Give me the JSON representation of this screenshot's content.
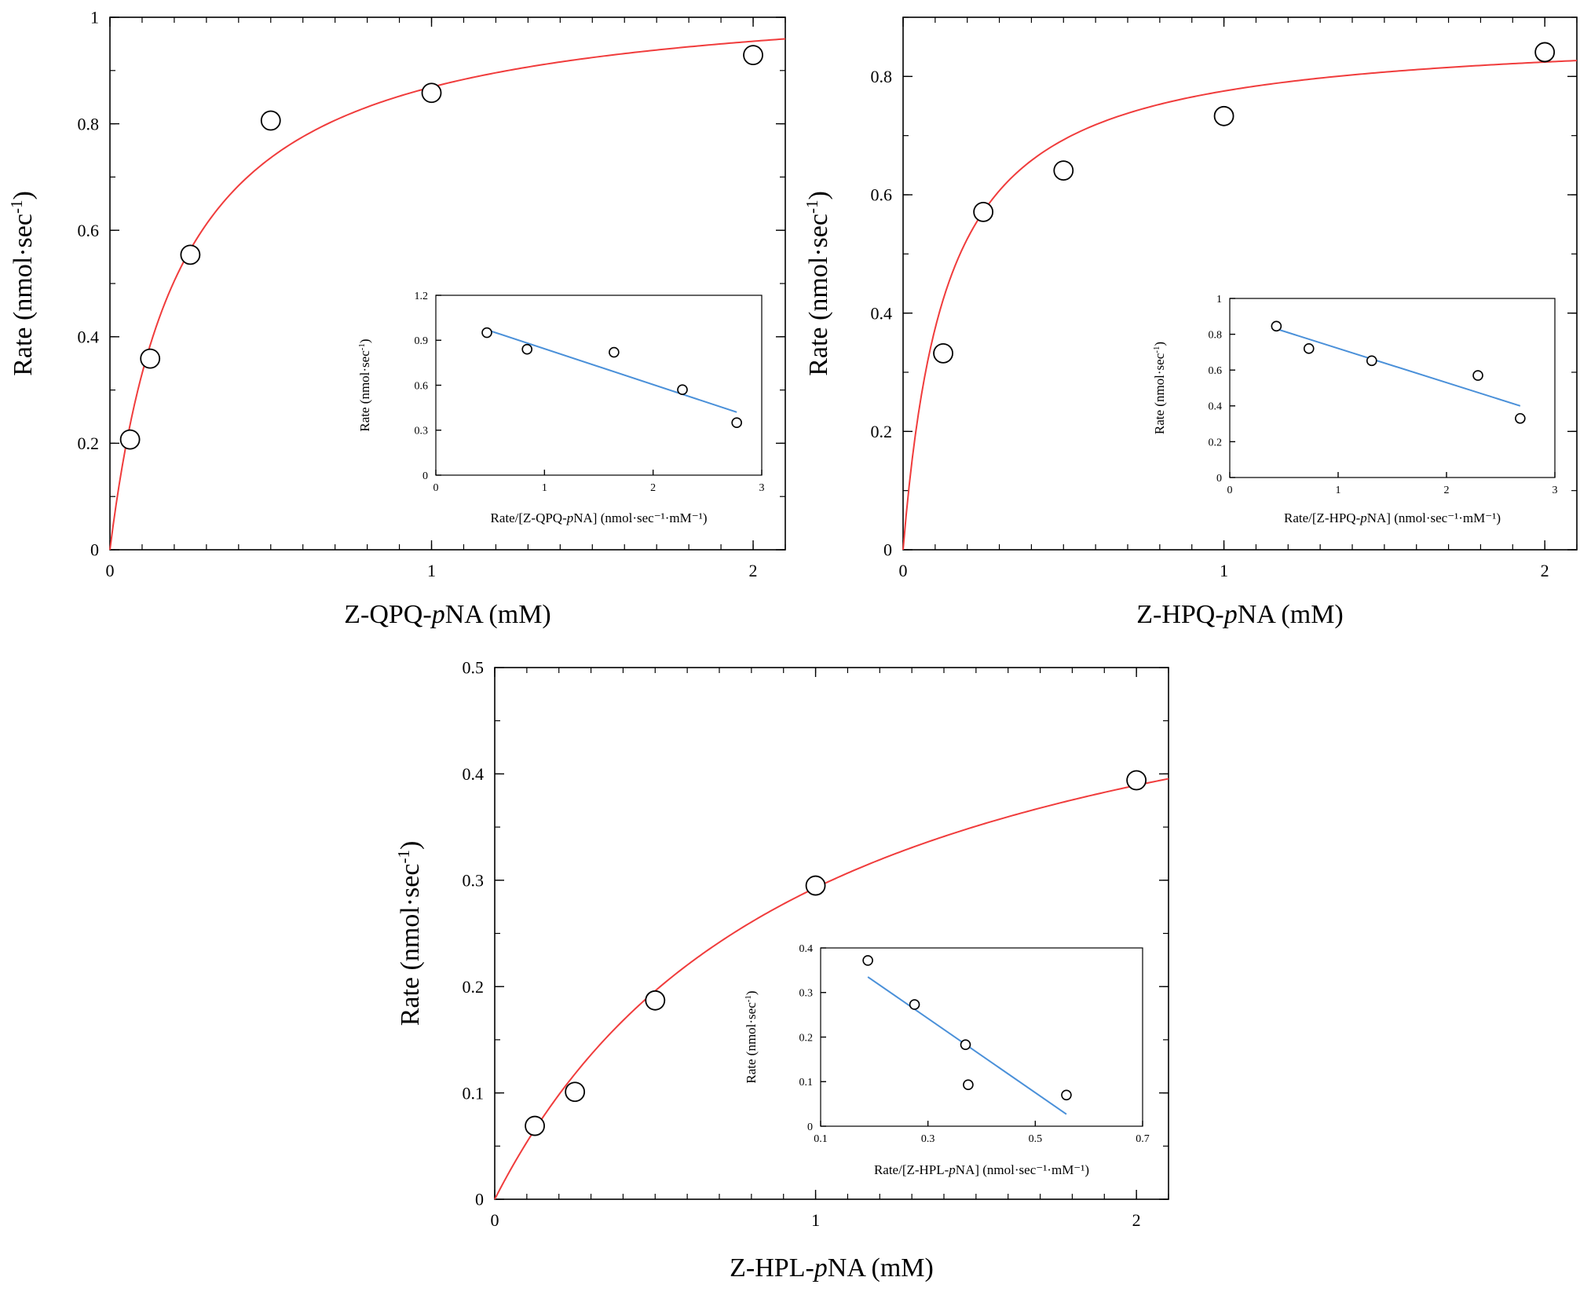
{
  "colors": {
    "fit": "#f03c3c",
    "inset_fit": "#4a90d9",
    "axis": "#000000",
    "marker": "#000000"
  },
  "chart_data": [
    {
      "type": "scatter",
      "id": "qpq-main",
      "title": "",
      "xlabel": {
        "pre": "Z-QPQ-",
        "ital": "p",
        "post": "NA (mM)"
      },
      "ylabel": {
        "pre": "Rate (nmol·sec",
        "sup": "-1",
        "post": ")"
      },
      "xlim": [
        0,
        2.1
      ],
      "ylim": [
        0,
        1
      ],
      "x_ticks": [
        0,
        1,
        2
      ],
      "y_ticks": [
        0,
        0.2,
        0.4,
        0.6,
        0.8,
        1
      ],
      "x_tick_labels": [
        "0",
        "1",
        "2"
      ],
      "y_tick_labels": [
        "0",
        "0.2",
        "0.4",
        "0.6",
        "0.8",
        "1"
      ],
      "x_minor_step": 0.1,
      "y_minor_step": 0.1,
      "points": {
        "x": [
          0.0625,
          0.125,
          0.25,
          0.5,
          1,
          2
        ],
        "y": [
          0.207,
          0.359,
          0.554,
          0.806,
          0.858,
          0.929
        ]
      },
      "fit": {
        "model": "michaelis-menten",
        "vmax": 1.06,
        "km": 0.22,
        "color": "#f03c3c"
      },
      "inset": {
        "type": "scatter",
        "xlabel": {
          "pre": "Rate/[Z-QPQ-",
          "ital": "p",
          "post": "NA] (nmol·sec⁻¹·mM⁻¹)"
        },
        "ylabel": {
          "pre": "Rate (nmol·sec",
          "sup": "-1",
          "post": ")"
        },
        "xlim": [
          0,
          3
        ],
        "ylim": [
          0,
          1.2
        ],
        "x_ticks": [
          0,
          1,
          2,
          3
        ],
        "y_ticks": [
          0,
          0.3,
          0.6,
          0.9,
          1.2
        ],
        "x_tick_labels": [
          "0",
          "1",
          "2",
          "3"
        ],
        "y_tick_labels": [
          "0",
          "0.3",
          "0.6",
          "0.9",
          "1.2"
        ],
        "points": {
          "x": [
            0.47,
            0.84,
            1.64,
            2.27,
            2.77
          ],
          "y": [
            0.951,
            0.84,
            0.82,
            0.57,
            0.35
          ]
        },
        "line": {
          "x": [
            0.47,
            2.77
          ],
          "y": [
            0.97,
            0.42
          ],
          "color": "#4a90d9"
        }
      }
    },
    {
      "type": "scatter",
      "id": "hpq-main",
      "title": "",
      "xlabel": {
        "pre": "Z-HPQ-",
        "ital": "p",
        "post": "NA (mM)"
      },
      "ylabel": {
        "pre": "Rate (nmol·sec",
        "sup": "-1",
        "post": ")"
      },
      "xlim": [
        0,
        2.1
      ],
      "ylim": [
        0,
        0.9
      ],
      "x_ticks": [
        0,
        1,
        2
      ],
      "y_ticks": [
        0,
        0.2,
        0.4,
        0.6,
        0.8
      ],
      "x_tick_labels": [
        "0",
        "1",
        "2"
      ],
      "y_tick_labels": [
        "0",
        "0.2",
        "0.4",
        "0.6",
        "0.8"
      ],
      "x_minor_step": 0.1,
      "y_minor_step": 0.1,
      "points": {
        "x": [
          0.125,
          0.25,
          0.5,
          1,
          2
        ],
        "y": [
          0.332,
          0.571,
          0.641,
          0.733,
          0.841
        ]
      },
      "fit": {
        "model": "michaelis-menten",
        "vmax": 0.88,
        "km": 0.135,
        "color": "#f03c3c"
      },
      "inset": {
        "type": "scatter",
        "xlabel": {
          "pre": "Rate/[Z-HPQ-",
          "ital": "p",
          "post": "NA] (nmol·sec⁻¹·mM⁻¹)"
        },
        "ylabel": {
          "pre": "Rate (nmol·sec",
          "sup": "-1",
          "post": ")"
        },
        "xlim": [
          0,
          3
        ],
        "ylim": [
          0,
          1
        ],
        "x_ticks": [
          0,
          1,
          2,
          3
        ],
        "y_ticks": [
          0,
          0.2,
          0.4,
          0.6,
          0.8,
          1
        ],
        "x_tick_labels": [
          "0",
          "1",
          "2",
          "3"
        ],
        "y_tick_labels": [
          "0",
          "0.2",
          "0.4",
          "0.6",
          "0.8",
          "1"
        ],
        "points": {
          "x": [
            0.43,
            0.73,
            1.31,
            2.29,
            2.68
          ],
          "y": [
            0.845,
            0.72,
            0.652,
            0.57,
            0.33
          ]
        },
        "line": {
          "x": [
            0.43,
            2.68
          ],
          "y": [
            0.83,
            0.4
          ],
          "color": "#4a90d9"
        }
      }
    },
    {
      "type": "scatter",
      "id": "hpl-main",
      "title": "",
      "xlabel": {
        "pre": "Z-HPL-",
        "ital": "p",
        "post": "NA (mM)"
      },
      "ylabel": {
        "pre": "Rate (nmol·sec",
        "sup": "-1",
        "post": ")"
      },
      "xlim": [
        0,
        2.1
      ],
      "ylim": [
        0,
        0.5
      ],
      "x_ticks": [
        0,
        1,
        2
      ],
      "y_ticks": [
        0,
        0.1,
        0.2,
        0.3,
        0.4,
        0.5
      ],
      "x_tick_labels": [
        "0",
        "1",
        "2"
      ],
      "y_tick_labels": [
        "0",
        "0.1",
        "0.2",
        "0.3",
        "0.4",
        "0.5"
      ],
      "x_minor_step": 0.1,
      "y_minor_step": 0.05,
      "points": {
        "x": [
          0.125,
          0.25,
          0.5,
          1,
          2
        ],
        "y": [
          0.069,
          0.101,
          0.187,
          0.295,
          0.394
        ]
      },
      "fit": {
        "model": "michaelis-menten",
        "vmax": 0.58,
        "km": 0.98,
        "color": "#f03c3c"
      },
      "inset": {
        "type": "scatter",
        "xlabel": {
          "pre": "Rate/[Z-HPL-",
          "ital": "p",
          "post": "NA] (nmol·sec⁻¹·mM⁻¹)"
        },
        "ylabel": {
          "pre": "Rate (nmol·sec",
          "sup": "-1",
          "post": ")"
        },
        "xlim": [
          0.1,
          0.7
        ],
        "ylim": [
          0,
          0.4
        ],
        "x_ticks": [
          0.1,
          0.3,
          0.5,
          0.7
        ],
        "y_ticks": [
          0,
          0.1,
          0.2,
          0.3,
          0.4
        ],
        "x_tick_labels": [
          "0.1",
          "0.3",
          "0.5",
          "0.7"
        ],
        "y_tick_labels": [
          "0",
          "0.1",
          "0.2",
          "0.3",
          "0.4"
        ],
        "points": {
          "x": [
            0.188,
            0.275,
            0.37,
            0.375,
            0.558
          ],
          "y": [
            0.372,
            0.273,
            0.183,
            0.093,
            0.07
          ]
        },
        "line": {
          "x": [
            0.188,
            0.558
          ],
          "y": [
            0.335,
            0.027
          ],
          "color": "#4a90d9"
        }
      }
    }
  ]
}
